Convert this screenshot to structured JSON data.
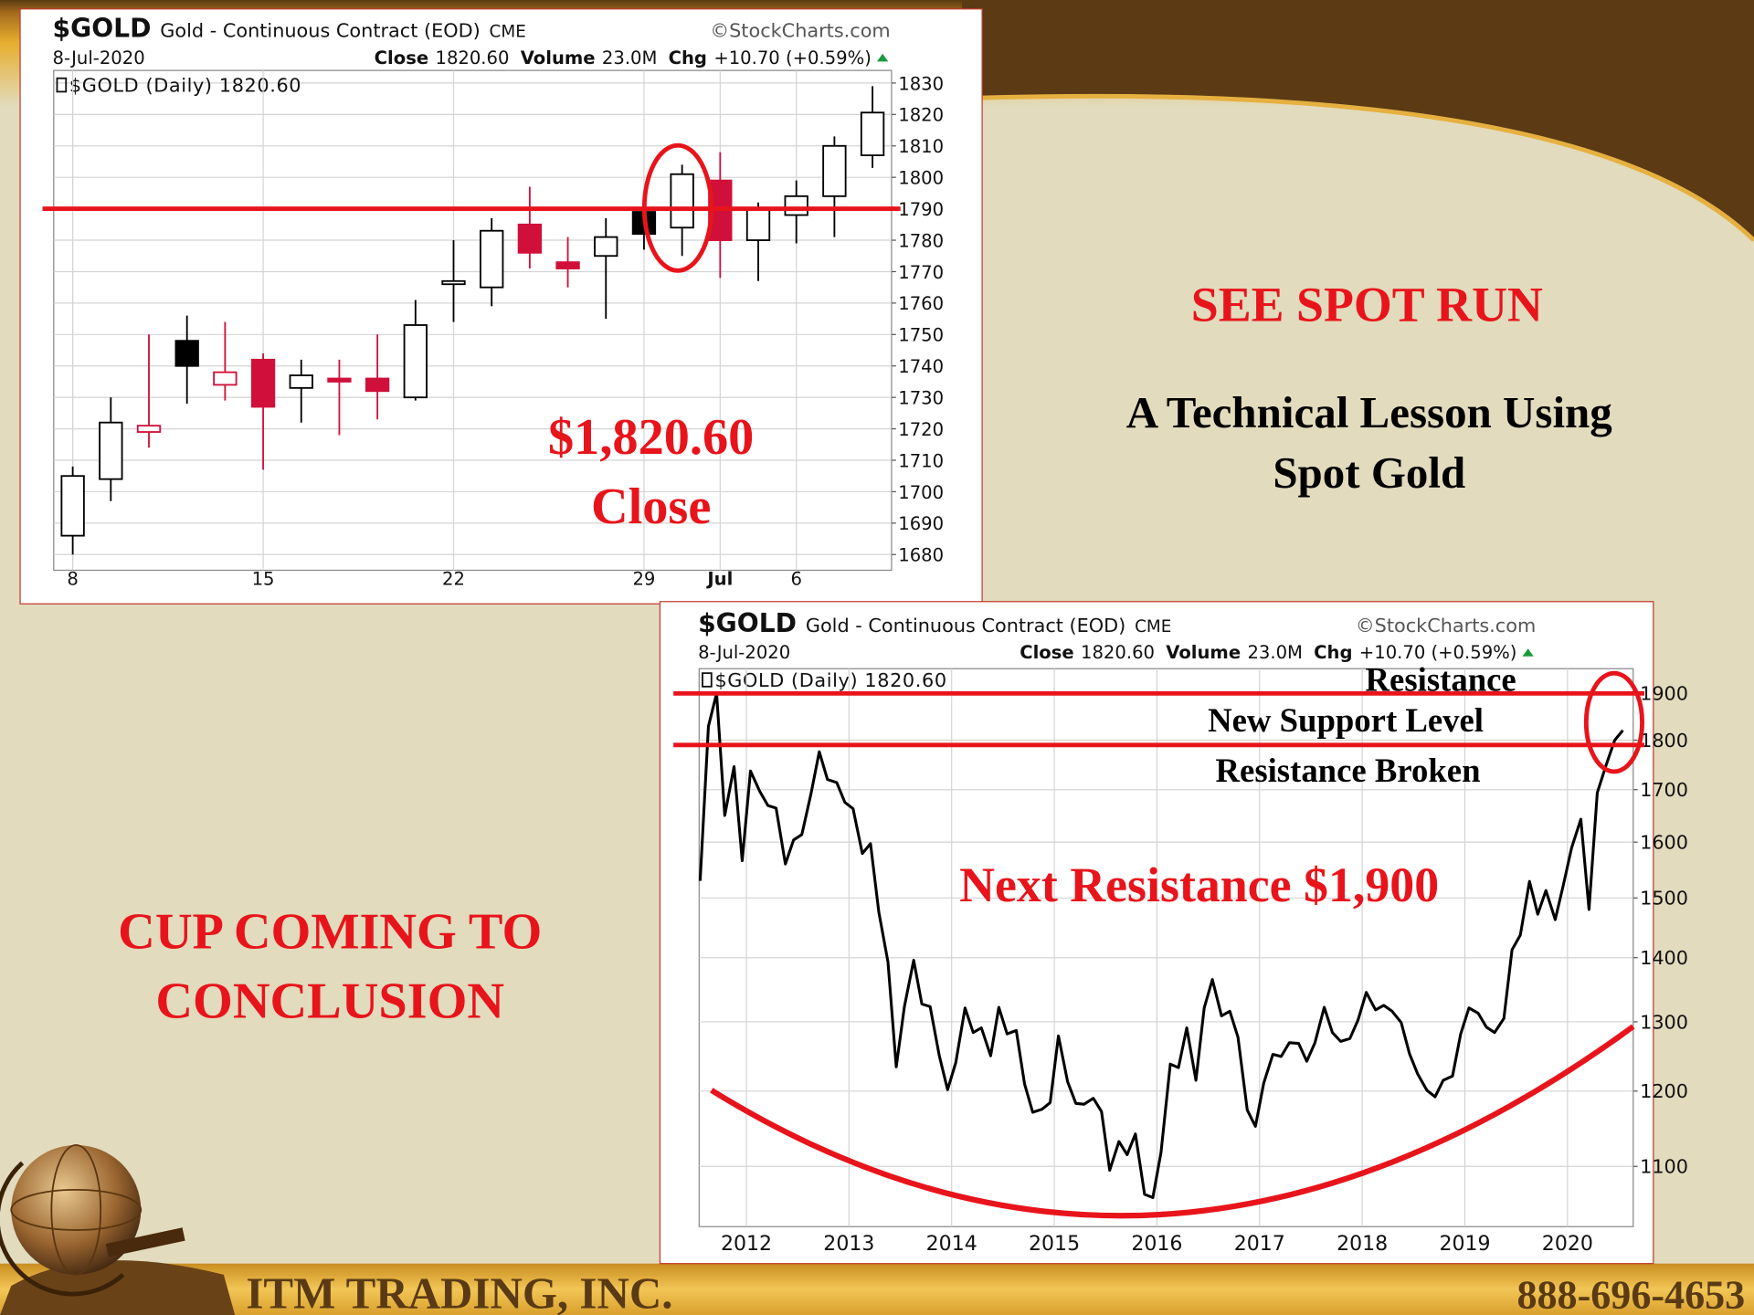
{
  "slide": {
    "title": "SEE SPOT RUN",
    "subtitle_lines": [
      "A Technical Lesson Using",
      "Spot Gold"
    ],
    "cup_lines": [
      "CUP COMING TO",
      "CONCLUSION"
    ],
    "company": "ITM TRADING, INC.",
    "phone": "888-696-4653"
  },
  "chart_data": [
    {
      "type": "candlestick",
      "header": {
        "symbol": "$GOLD",
        "name": "Gold - Continuous Contract (EOD)",
        "exchange": "CME",
        "source": "©StockCharts.com",
        "date": "8-Jul-2020",
        "close_label": "Close",
        "close": "1820.60",
        "volume_label": "Volume",
        "volume": "23.0M",
        "chg_label": "Chg",
        "chg": "+10.70 (+0.59%)",
        "legend": "$GOLD (Daily) 1820.60"
      },
      "categories": [
        "8",
        null,
        null,
        null,
        null,
        "15",
        null,
        null,
        null,
        null,
        "22",
        null,
        null,
        null,
        null,
        "29",
        null,
        "Jul",
        null,
        "6",
        null,
        null
      ],
      "open": [
        1686,
        1704,
        1719,
        1748,
        1734,
        1742,
        1733,
        1736,
        1736,
        1730,
        1766,
        1765,
        1785,
        1773,
        1775,
        1789,
        1784,
        1799,
        1780,
        1788,
        1794,
        1807
      ],
      "high": [
        1708,
        1730,
        1750,
        1756,
        1754,
        1744,
        1742,
        1742,
        1750,
        1761,
        1780,
        1787,
        1797,
        1781,
        1787,
        1790,
        1804,
        1808,
        1792,
        1799,
        1813,
        1829
      ],
      "low": [
        1680,
        1697,
        1714,
        1728,
        1729,
        1707,
        1722,
        1718,
        1723,
        1729,
        1754,
        1759,
        1771,
        1765,
        1755,
        1777,
        1775,
        1768,
        1767,
        1779,
        1781,
        1803
      ],
      "close": [
        1705,
        1722,
        1721,
        1740,
        1738,
        1727,
        1737,
        1735,
        1732,
        1753,
        1767,
        1783,
        1776,
        1771,
        1781,
        1782,
        1801,
        1780,
        1790,
        1794,
        1810,
        1820.6
      ],
      "color_up": "#000000",
      "color_down": "#d0103a",
      "ylim": [
        1675,
        1834
      ],
      "yticks": [
        1680,
        1690,
        1700,
        1710,
        1720,
        1730,
        1740,
        1750,
        1760,
        1770,
        1780,
        1790,
        1800,
        1810,
        1820,
        1830
      ],
      "grid": true,
      "reference_lines": [
        1790
      ],
      "reference_color": "#e8141b",
      "annotations": [
        "$1,820.60",
        "Close"
      ]
    },
    {
      "type": "line",
      "header": {
        "symbol": "$GOLD",
        "name": "Gold - Continuous Contract (EOD)",
        "exchange": "CME",
        "source": "©StockCharts.com",
        "date": "8-Jul-2020",
        "close_label": "Close",
        "close": "1820.60",
        "volume_label": "Volume",
        "volume": "23.0M",
        "chg_label": "Chg",
        "chg": "+10.70 (+0.59%)",
        "legend": "$GOLD (Daily) 1820.60"
      },
      "x": [
        2011.55,
        2011.63,
        2011.71,
        2011.79,
        2011.88,
        2011.96,
        2012.04,
        2012.13,
        2012.21,
        2012.29,
        2012.38,
        2012.46,
        2012.54,
        2012.63,
        2012.71,
        2012.79,
        2012.88,
        2012.96,
        2013.04,
        2013.13,
        2013.21,
        2013.29,
        2013.38,
        2013.46,
        2013.54,
        2013.63,
        2013.71,
        2013.79,
        2013.88,
        2013.96,
        2014.04,
        2014.13,
        2014.21,
        2014.29,
        2014.38,
        2014.46,
        2014.54,
        2014.63,
        2014.71,
        2014.79,
        2014.88,
        2014.96,
        2015.04,
        2015.13,
        2015.21,
        2015.29,
        2015.38,
        2015.46,
        2015.54,
        2015.63,
        2015.71,
        2015.79,
        2015.88,
        2015.96,
        2016.04,
        2016.13,
        2016.21,
        2016.29,
        2016.38,
        2016.46,
        2016.54,
        2016.63,
        2016.71,
        2016.79,
        2016.88,
        2016.96,
        2017.04,
        2017.13,
        2017.21,
        2017.29,
        2017.38,
        2017.46,
        2017.54,
        2017.63,
        2017.71,
        2017.79,
        2017.88,
        2017.96,
        2018.04,
        2018.13,
        2018.21,
        2018.29,
        2018.38,
        2018.46,
        2018.54,
        2018.63,
        2018.71,
        2018.79,
        2018.88,
        2018.96,
        2019.04,
        2019.13,
        2019.21,
        2019.29,
        2019.38,
        2019.46,
        2019.54,
        2019.63,
        2019.71,
        2019.79,
        2019.88,
        2019.96,
        2020.04,
        2020.13,
        2020.21,
        2020.29,
        2020.38,
        2020.46,
        2020.54
      ],
      "values": [
        1530,
        1829,
        1900,
        1650,
        1746,
        1566,
        1737,
        1697,
        1669,
        1664,
        1560,
        1604,
        1614,
        1692,
        1776,
        1720,
        1714,
        1675,
        1663,
        1579,
        1597,
        1476,
        1393,
        1234,
        1323,
        1396,
        1327,
        1323,
        1250,
        1202,
        1240,
        1321,
        1284,
        1291,
        1250,
        1322,
        1282,
        1287,
        1210,
        1171,
        1175,
        1184,
        1279,
        1213,
        1183,
        1182,
        1190,
        1172,
        1095,
        1132,
        1115,
        1142,
        1065,
        1061,
        1118,
        1238,
        1233,
        1291,
        1215,
        1321,
        1365,
        1309,
        1316,
        1277,
        1174,
        1152,
        1211,
        1252,
        1249,
        1269,
        1268,
        1242,
        1269,
        1322,
        1284,
        1271,
        1275,
        1303,
        1345,
        1318,
        1325,
        1316,
        1299,
        1253,
        1224,
        1201,
        1192,
        1215,
        1221,
        1282,
        1321,
        1313,
        1292,
        1284,
        1305,
        1413,
        1437,
        1529,
        1472,
        1513,
        1463,
        1523,
        1589,
        1643,
        1480,
        1694,
        1751,
        1800,
        1820.6
      ],
      "color": "#000000",
      "log_y": true,
      "xlim": [
        2011.54,
        2020.64
      ],
      "xticks": [
        2012,
        2013,
        2014,
        2015,
        2016,
        2017,
        2018,
        2019,
        2020
      ],
      "ylim": [
        1026,
        1955
      ],
      "yticks": [
        1100,
        1200,
        1300,
        1400,
        1500,
        1600,
        1700,
        1800,
        1900
      ],
      "grid": true,
      "reference_lines": [
        1900,
        1790
      ],
      "reference_color": "#e8141b",
      "annotations": [
        "Resistance",
        "New Support Level",
        "Resistance Broken",
        "Next Resistance $1,900"
      ]
    }
  ]
}
